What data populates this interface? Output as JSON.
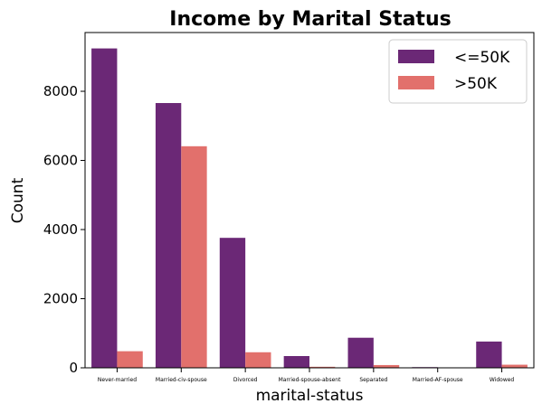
{
  "chart_data": {
    "type": "bar",
    "title": "Income by Marital Status",
    "xlabel": "marital-status",
    "ylabel": "Count",
    "categories": [
      "Never-married",
      "Married-civ-spouse",
      "Divorced",
      "Married-spouse-absent",
      "Separated",
      "Married-AF-spouse",
      "Widowed"
    ],
    "series": [
      {
        "name": "<=50K",
        "color": "#6b2876",
        "values": [
          9240,
          7660,
          3760,
          340,
          870,
          20,
          760
        ]
      },
      {
        "name": ">50K",
        "color": "#e2706c",
        "values": [
          480,
          6410,
          450,
          30,
          80,
          10,
          90
        ]
      }
    ],
    "ylim": [
      0,
      9700
    ],
    "yticks": [
      0,
      2000,
      4000,
      6000,
      8000
    ],
    "grid": false,
    "legend_position": "top-right"
  }
}
